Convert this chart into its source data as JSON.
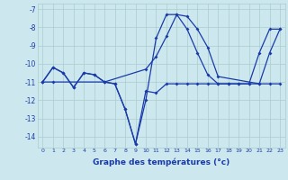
{
  "xlabel": "Graphe des températures (°c)",
  "xlim": [
    -0.5,
    23.5
  ],
  "ylim": [
    -14.6,
    -6.7
  ],
  "yticks": [
    -14,
    -13,
    -12,
    -11,
    -10,
    -9,
    -8,
    -7
  ],
  "xticks": [
    0,
    1,
    2,
    3,
    4,
    5,
    6,
    7,
    8,
    9,
    10,
    11,
    12,
    13,
    14,
    15,
    16,
    17,
    18,
    19,
    20,
    21,
    22,
    23
  ],
  "background_color": "#cce8ee",
  "grid_color": "#aacccc",
  "line_color": "#1a3aaa",
  "series1_x": [
    0,
    1,
    2,
    3,
    4,
    5,
    6,
    7,
    8,
    9,
    10,
    11,
    12,
    13,
    14,
    15,
    16,
    17,
    18,
    19,
    20,
    21,
    22,
    23
  ],
  "series1_y": [
    -11.0,
    -10.2,
    -10.5,
    -11.3,
    -10.5,
    -10.6,
    -11.0,
    -11.1,
    -12.5,
    -14.4,
    -11.5,
    -11.6,
    -11.1,
    -11.1,
    -11.1,
    -11.1,
    -11.1,
    -11.1,
    -11.1,
    -11.1,
    -11.1,
    -11.1,
    -11.1,
    -11.1
  ],
  "series2_x": [
    0,
    1,
    2,
    3,
    4,
    5,
    6,
    7,
    8,
    9,
    10,
    11,
    12,
    13,
    14,
    15,
    16,
    17,
    18,
    19,
    20,
    21,
    22,
    23
  ],
  "series2_y": [
    -11.0,
    -10.2,
    -10.5,
    -11.3,
    -10.5,
    -10.6,
    -11.0,
    -11.1,
    -12.5,
    -14.4,
    -12.0,
    -8.6,
    -7.3,
    -7.3,
    -8.1,
    -9.4,
    -10.6,
    -11.1,
    -11.1,
    -11.1,
    -11.1,
    -9.4,
    -8.1,
    -8.1
  ],
  "series3_x": [
    0,
    1,
    6,
    10,
    11,
    12,
    13,
    14,
    15,
    16,
    17,
    21,
    22,
    23
  ],
  "series3_y": [
    -11.0,
    -11.0,
    -11.0,
    -10.3,
    -9.6,
    -8.5,
    -7.3,
    -7.4,
    -8.1,
    -9.1,
    -10.7,
    -11.1,
    -9.4,
    -8.1
  ]
}
